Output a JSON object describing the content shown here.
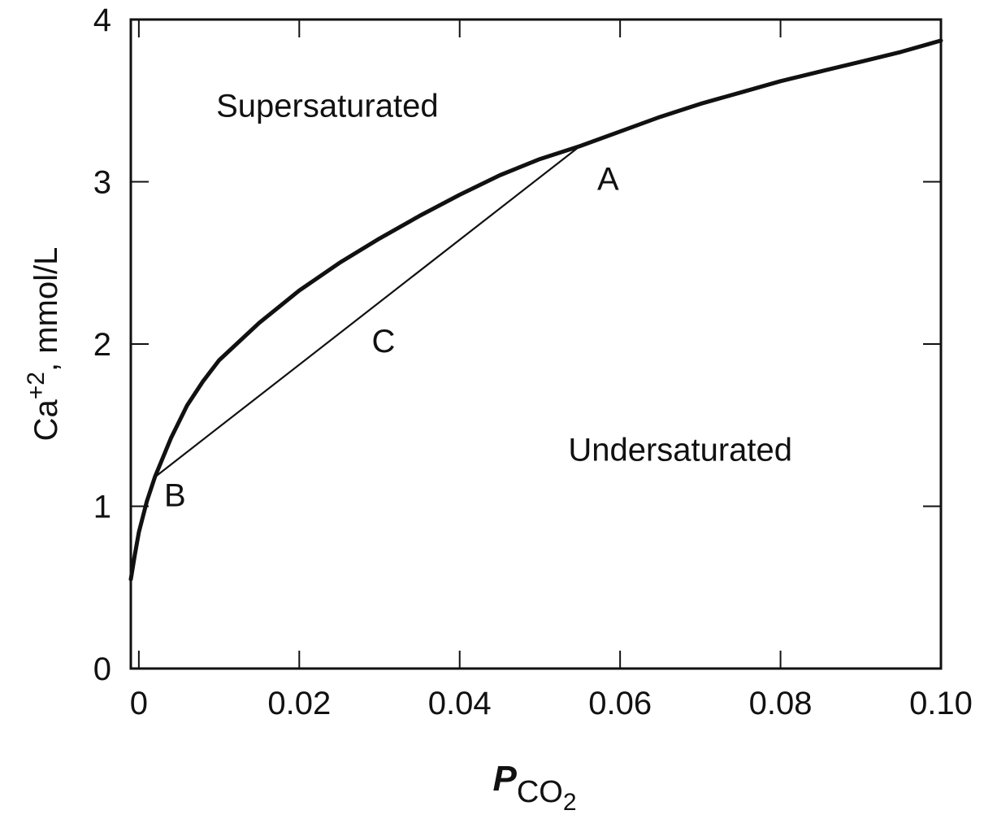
{
  "chart_data": {
    "type": "line",
    "xlabel": {
      "symbol": "P",
      "subscript": "CO",
      "subscript2": "2"
    },
    "ylabel": {
      "prefix": "Ca",
      "superscript": "+2",
      "suffix": ", mmol/L"
    },
    "xlim": [
      -0.001,
      0.1
    ],
    "ylim": [
      0,
      4
    ],
    "x_ticks": [
      0,
      0.02,
      0.04,
      0.06,
      0.08,
      0.1
    ],
    "x_tick_labels": [
      "0",
      "0.02",
      "0.04",
      "0.06",
      "0.08",
      "0.10"
    ],
    "y_ticks": [
      0,
      1,
      2,
      3,
      4
    ],
    "y_tick_labels": [
      "0",
      "1",
      "2",
      "3",
      "4"
    ],
    "grid": false,
    "series": [
      {
        "style": "thick",
        "x": [
          -0.001,
          -0.0005,
          0.0,
          0.001,
          0.002,
          0.004,
          0.006,
          0.008,
          0.01,
          0.015,
          0.02,
          0.025,
          0.03,
          0.035,
          0.04,
          0.045,
          0.05,
          0.055,
          0.06,
          0.065,
          0.07,
          0.075,
          0.08,
          0.085,
          0.09,
          0.095,
          0.1
        ],
        "y": [
          0.55,
          0.7,
          0.84,
          1.03,
          1.18,
          1.42,
          1.62,
          1.77,
          1.9,
          2.13,
          2.33,
          2.5,
          2.65,
          2.79,
          2.92,
          3.04,
          3.14,
          3.22,
          3.31,
          3.4,
          3.48,
          3.55,
          3.62,
          3.68,
          3.74,
          3.8,
          3.87
        ]
      },
      {
        "style": "thin",
        "x": [
          0.002,
          0.055
        ],
        "y": [
          1.18,
          3.22
        ]
      }
    ],
    "annotations": [
      {
        "text": "Supersaturated",
        "x": 0.0235,
        "y": 3.4,
        "kind": "region"
      },
      {
        "text": "Undersaturated",
        "x": 0.0675,
        "y": 1.28,
        "kind": "region"
      },
      {
        "text": "A",
        "x": 0.0585,
        "y": 2.95,
        "kind": "point"
      },
      {
        "text": "B",
        "x": 0.0045,
        "y": 1.0,
        "kind": "point"
      },
      {
        "text": "C",
        "x": 0.0305,
        "y": 1.95,
        "kind": "point"
      }
    ]
  }
}
